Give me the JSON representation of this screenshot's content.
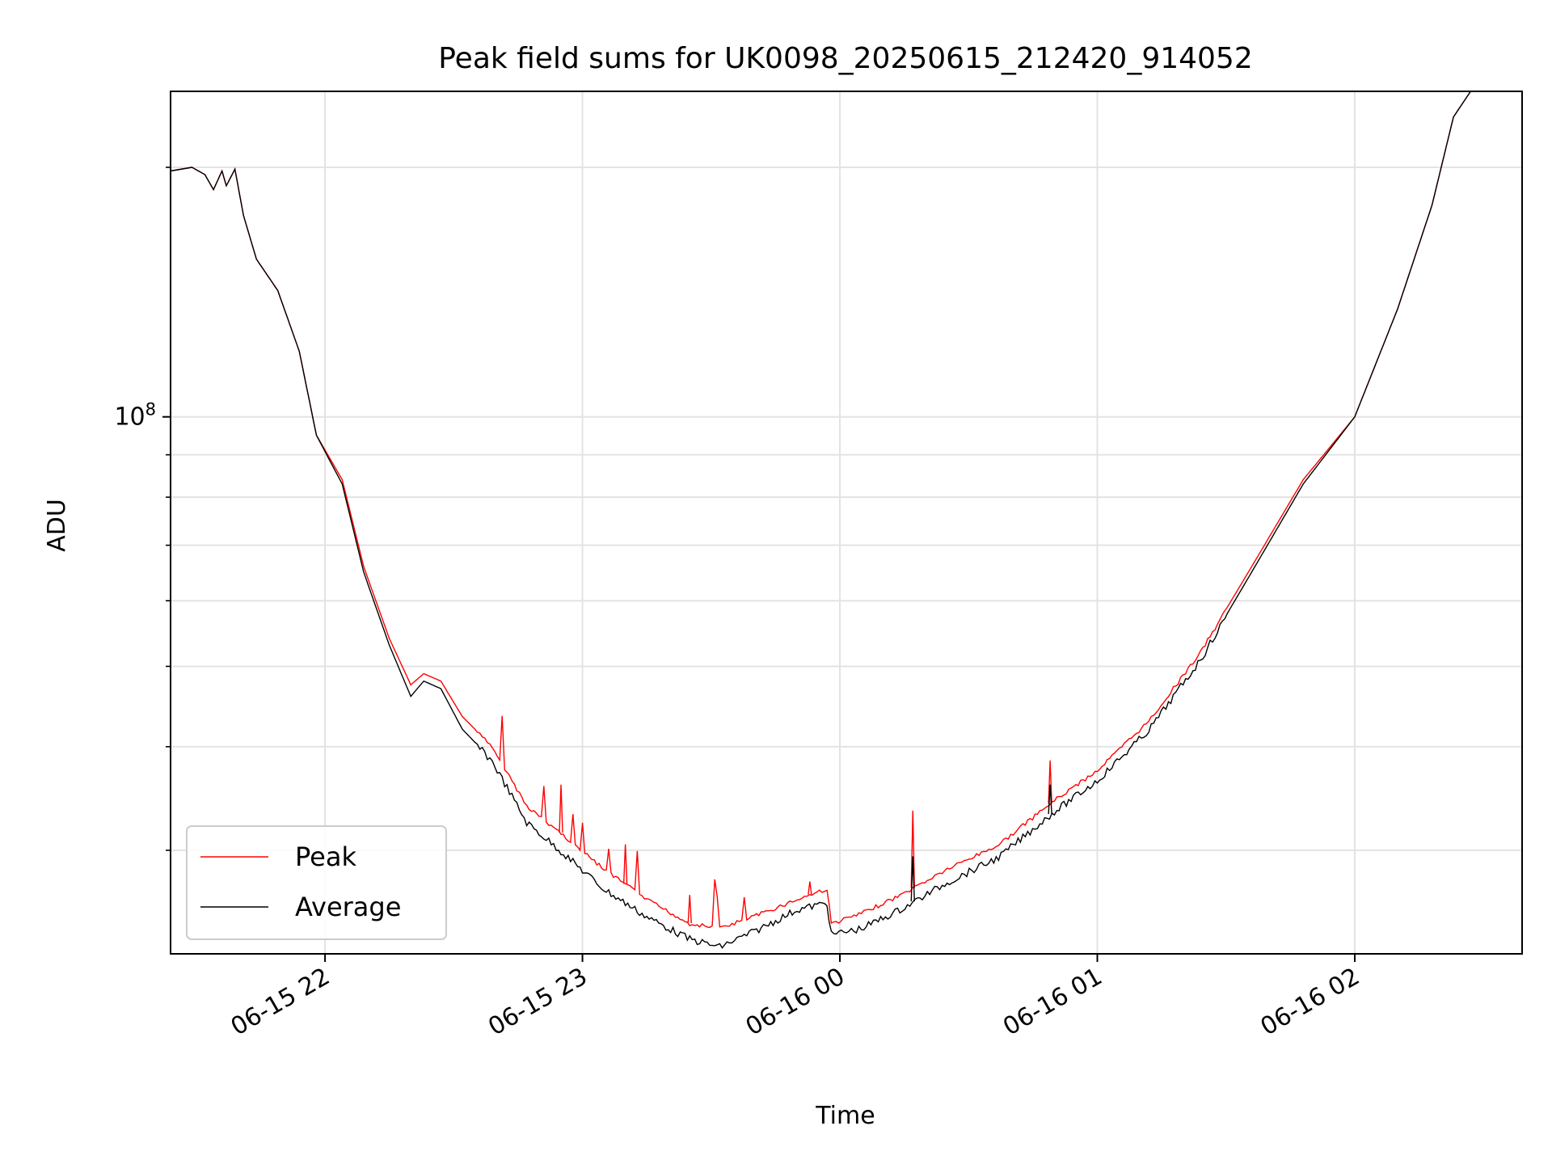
{
  "chart_data": {
    "type": "line",
    "title": "Peak field sums for UK0098_20250615_212420_914052",
    "xlabel": "Time",
    "ylabel": "ADU",
    "yscale": "log",
    "grid": true,
    "legend_placement": "lower-left",
    "xlim": [
      "2025-06-15 21:24",
      "2025-06-16 02:39"
    ],
    "ylim": [
      22500000.0,
      247000000.0
    ],
    "x_ticks": [
      {
        "t": "2025-06-15 22:00",
        "label": "06-15 22"
      },
      {
        "t": "2025-06-15 23:00",
        "label": "06-15 23"
      },
      {
        "t": "2025-06-16 00:00",
        "label": "06-16 00"
      },
      {
        "t": "2025-06-16 01:00",
        "label": "06-16 01"
      },
      {
        "t": "2025-06-16 02:00",
        "label": "06-16 02"
      }
    ],
    "y_ticks": [
      {
        "value": 100000000.0,
        "base": "10",
        "exp": "8"
      }
    ],
    "y_minor_ticks": [
      30000000.0,
      40000000.0,
      50000000.0,
      60000000.0,
      70000000.0,
      80000000.0,
      90000000.0,
      200000000.0
    ],
    "series": [
      {
        "name": "Peak",
        "color": "#ff0000",
        "points": [
          [
            "2025-06-15 21:24",
            198000000.0
          ],
          [
            "2025-06-15 21:29",
            200000000.0
          ],
          [
            "2025-06-15 21:32",
            196000000.0
          ],
          [
            "2025-06-15 21:34",
            188000000.0
          ],
          [
            "2025-06-15 21:36",
            198000000.0
          ],
          [
            "2025-06-15 21:37",
            190000000.0
          ],
          [
            "2025-06-15 21:39",
            199000000.0
          ],
          [
            "2025-06-15 21:41",
            175000000.0
          ],
          [
            "2025-06-15 21:44",
            155000000.0
          ],
          [
            "2025-06-15 21:49",
            142000000.0
          ],
          [
            "2025-06-15 21:54",
            120000000.0
          ],
          [
            "2025-06-15 21:58",
            95000000.0
          ],
          [
            "2025-06-15 22:04",
            84000000.0
          ],
          [
            "2025-06-15 22:09",
            66000000.0
          ],
          [
            "2025-06-15 22:15",
            54000000.0
          ],
          [
            "2025-06-15 22:20",
            47500000.0
          ],
          [
            "2025-06-15 22:23",
            49000000.0
          ],
          [
            "2025-06-15 22:27",
            48000000.0
          ],
          [
            "2025-06-15 22:32",
            43500000.0
          ],
          [
            "2025-06-15 22:39",
            40000000.0
          ],
          [
            "2025-06-15 22:47",
            34000000.0
          ],
          [
            "2025-06-15 22:55",
            31500000.0
          ],
          [
            "2025-06-15 23:05",
            28500000.0
          ],
          [
            "2025-06-15 23:15",
            26200000.0
          ],
          [
            "2025-06-15 23:25",
            24500000.0
          ],
          [
            "2025-06-15 23:32",
            24200000.0
          ],
          [
            "2025-06-15 23:40",
            25000000.0
          ],
          [
            "2025-06-15 23:50",
            26200000.0
          ],
          [
            "2025-06-15 23:57",
            27000000.0
          ],
          [
            "2025-06-15 23:58",
            24500000.0
          ],
          [
            "2025-06-16 00:05",
            25200000.0
          ],
          [
            "2025-06-16 00:14",
            26500000.0
          ],
          [
            "2025-06-16 00:25",
            28500000.0
          ],
          [
            "2025-06-16 00:37",
            30500000.0
          ],
          [
            "2025-06-16 00:50",
            34500000.0
          ],
          [
            "2025-06-16 01:00",
            37500000.0
          ],
          [
            "2025-06-16 01:12",
            43000000.0
          ],
          [
            "2025-06-16 01:24",
            52000000.0
          ],
          [
            "2025-06-16 01:36",
            66000000.0
          ],
          [
            "2025-06-16 01:48",
            84000000.0
          ],
          [
            "2025-06-16 02:00",
            100000000.0
          ],
          [
            "2025-06-16 02:10",
            135000000.0
          ],
          [
            "2025-06-16 02:18",
            180000000.0
          ],
          [
            "2025-06-16 02:23",
            230000000.0
          ],
          [
            "2025-06-16 02:27",
            247000000.0
          ],
          [
            "2025-06-16 02:39",
            247000000.0
          ]
        ],
        "spikes": [
          [
            "2025-06-16 00:17",
            33500000.0
          ],
          [
            "2025-06-16 00:49",
            38500000.0
          ],
          [
            "2025-06-15 23:53",
            27500000.0
          ],
          [
            "2025-06-15 23:25",
            26500000.0
          ],
          [
            "2025-06-15 23:10",
            30500000.0
          ],
          [
            "2025-06-15 22:55",
            36000000.0
          ]
        ]
      },
      {
        "name": "Average",
        "color": "#000000",
        "points": [
          [
            "2025-06-15 21:24",
            198000000.0
          ],
          [
            "2025-06-15 21:29",
            200000000.0
          ],
          [
            "2025-06-15 21:32",
            196000000.0
          ],
          [
            "2025-06-15 21:34",
            188000000.0
          ],
          [
            "2025-06-15 21:36",
            198000000.0
          ],
          [
            "2025-06-15 21:37",
            190000000.0
          ],
          [
            "2025-06-15 21:39",
            199000000.0
          ],
          [
            "2025-06-15 21:41",
            175000000.0
          ],
          [
            "2025-06-15 21:44",
            155000000.0
          ],
          [
            "2025-06-15 21:49",
            142000000.0
          ],
          [
            "2025-06-15 21:54",
            120000000.0
          ],
          [
            "2025-06-15 21:58",
            95000000.0
          ],
          [
            "2025-06-15 22:04",
            83000000.0
          ],
          [
            "2025-06-15 22:09",
            65000000.0
          ],
          [
            "2025-06-15 22:15",
            53000000.0
          ],
          [
            "2025-06-15 22:20",
            46000000.0
          ],
          [
            "2025-06-15 22:23",
            48000000.0
          ],
          [
            "2025-06-15 22:27",
            47000000.0
          ],
          [
            "2025-06-15 22:32",
            42000000.0
          ],
          [
            "2025-06-15 22:39",
            38500000.0
          ],
          [
            "2025-06-15 22:47",
            32500000.0
          ],
          [
            "2025-06-15 22:55",
            30000000.0
          ],
          [
            "2025-06-15 23:05",
            27000000.0
          ],
          [
            "2025-06-15 23:15",
            25000000.0
          ],
          [
            "2025-06-15 23:25",
            23500000.0
          ],
          [
            "2025-06-15 23:32",
            23000000.0
          ],
          [
            "2025-06-15 23:40",
            24000000.0
          ],
          [
            "2025-06-15 23:50",
            25500000.0
          ],
          [
            "2025-06-15 23:57",
            26000000.0
          ],
          [
            "2025-06-15 23:58",
            23800000.0
          ],
          [
            "2025-06-16 00:05",
            24200000.0
          ],
          [
            "2025-06-16 00:14",
            25500000.0
          ],
          [
            "2025-06-16 00:25",
            27500000.0
          ],
          [
            "2025-06-16 00:37",
            29500000.0
          ],
          [
            "2025-06-16 00:50",
            33500000.0
          ],
          [
            "2025-06-16 01:00",
            36500000.0
          ],
          [
            "2025-06-16 01:12",
            42000000.0
          ],
          [
            "2025-06-16 01:24",
            51000000.0
          ],
          [
            "2025-06-16 01:36",
            65000000.0
          ],
          [
            "2025-06-16 01:48",
            83000000.0
          ],
          [
            "2025-06-16 02:00",
            100000000.0
          ],
          [
            "2025-06-16 02:10",
            135000000.0
          ],
          [
            "2025-06-16 02:18",
            180000000.0
          ],
          [
            "2025-06-16 02:23",
            230000000.0
          ],
          [
            "2025-06-16 02:27",
            247000000.0
          ],
          [
            "2025-06-16 02:39",
            247000000.0
          ]
        ],
        "spikes": [
          [
            "2025-06-16 00:17",
            29500000.0
          ],
          [
            "2025-06-16 00:49",
            36000000.0
          ]
        ]
      }
    ]
  }
}
